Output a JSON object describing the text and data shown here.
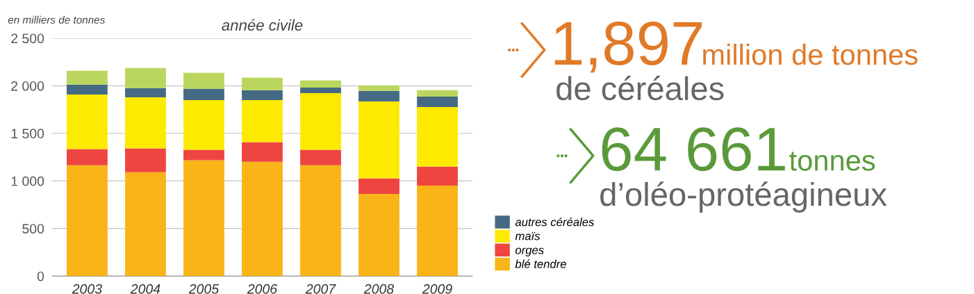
{
  "chart_data": {
    "type": "bar",
    "stacked": true,
    "title": "année civile",
    "ylabel": "en milliers de tonnes",
    "categories": [
      "2003",
      "2004",
      "2005",
      "2006",
      "2007",
      "2008",
      "2009"
    ],
    "series": [
      {
        "name": "blé tendre",
        "color": "#f9b418",
        "values": [
          1165,
          1092,
          1217,
          1202,
          1165,
          864,
          952
        ]
      },
      {
        "name": "orges",
        "color": "#ee4540",
        "values": [
          170,
          250,
          110,
          206,
          162,
          162,
          199
        ]
      },
      {
        "name": "maïs",
        "color": "#fcea00",
        "values": [
          574,
          537,
          523,
          442,
          596,
          809,
          625
        ]
      },
      {
        "name": "autres céréales",
        "color": "#456a84",
        "values": [
          103,
          96,
          118,
          103,
          59,
          111,
          111
        ]
      },
      {
        "color": "#bad65e",
        "values": [
          147,
          213,
          169,
          132,
          74,
          58,
          66
        ]
      }
    ],
    "ylim": [
      0,
      2500
    ],
    "yticks": [
      0,
      500,
      {
        "value": 1000,
        "label": "1 000"
      },
      {
        "value": 1500,
        "label": "1 500"
      },
      {
        "value": 2000,
        "label": "2 000"
      },
      {
        "value": 2500,
        "label": "2 500"
      }
    ],
    "grid": "y",
    "legend": "bottom right",
    "annotations": [
      "1,897",
      "million de tonnes",
      "de céréales",
      "64 661",
      "tonnes",
      "d’oléo-protéagineux"
    ]
  }
}
